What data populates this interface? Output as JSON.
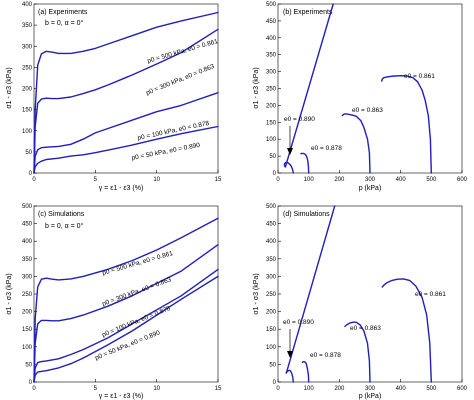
{
  "chart_data": [
    {
      "type": "line",
      "panel": "a",
      "title": "(a) Experiments",
      "subtitle": "b = 0, α = 0°",
      "xlabel": "γ = ε1 - ε3 (%)",
      "ylabel": "σ1 - σ3 (kPa)",
      "xlim": [
        0,
        15
      ],
      "ylim": [
        0,
        400
      ],
      "xticks": [
        0,
        5,
        10,
        15
      ],
      "yticks": [
        0,
        50,
        100,
        150,
        200,
        250,
        300,
        350,
        400
      ],
      "series": [
        {
          "name": "p0 = 500 kPa, e0 = 0.861",
          "x": [
            0,
            0.1,
            0.3,
            0.6,
            1,
            1.5,
            2,
            3,
            4,
            5,
            6,
            8,
            10,
            12,
            15
          ],
          "y": [
            0,
            150,
            255,
            282,
            288,
            286,
            283,
            283,
            288,
            295,
            305,
            325,
            345,
            360,
            380
          ]
        },
        {
          "name": "p0 = 300 kPa, e0 = 0.863",
          "x": [
            0,
            0.1,
            0.3,
            0.6,
            1,
            1.5,
            2,
            3,
            4,
            5,
            6,
            8,
            10,
            12,
            15
          ],
          "y": [
            0,
            110,
            165,
            175,
            177,
            176,
            176,
            180,
            188,
            197,
            208,
            232,
            258,
            285,
            340
          ]
        },
        {
          "name": "p0 = 100 kPa, e0 = 0.878",
          "x": [
            0,
            0.1,
            0.3,
            0.6,
            1,
            2,
            3,
            4,
            5,
            6,
            8,
            10,
            12,
            15
          ],
          "y": [
            0,
            40,
            55,
            60,
            61,
            63,
            68,
            80,
            95,
            105,
            125,
            145,
            160,
            190
          ]
        },
        {
          "name": "p0 = 50 kPa, e0 = 0.890",
          "x": [
            0,
            0.1,
            0.3,
            0.6,
            1,
            2,
            3,
            4,
            5,
            6,
            8,
            10,
            12,
            15
          ],
          "y": [
            0,
            15,
            23,
            28,
            32,
            35,
            40,
            43,
            48,
            54,
            66,
            80,
            93,
            110
          ]
        }
      ]
    },
    {
      "type": "line",
      "panel": "b",
      "title": "(b) Experiments",
      "xlabel": "p (kPa)",
      "ylabel": "σ1 - σ3 (kPa)",
      "xlim": [
        0,
        600
      ],
      "ylim": [
        0,
        500
      ],
      "xticks": [
        0,
        100,
        200,
        300,
        400,
        500,
        600
      ],
      "yticks": [
        0,
        50,
        100,
        150,
        200,
        250,
        300,
        350,
        400,
        450,
        500
      ],
      "annotations": [
        "e0 = 0.861",
        "e0 = 0.863",
        "e0 = 0.878",
        "e0 = 0.890"
      ],
      "series": [
        {
          "name": "e0 = 0.861",
          "x": [
            500,
            497,
            490,
            480,
            470,
            455,
            440,
            420,
            400,
            380,
            360,
            345,
            340,
            338
          ],
          "y": [
            0,
            100,
            170,
            215,
            245,
            270,
            282,
            287,
            288,
            287,
            285,
            282,
            278,
            272
          ]
        },
        {
          "name": "e0 = 0.863",
          "x": [
            300,
            298,
            292,
            280,
            270,
            255,
            240,
            228,
            220,
            215,
            212,
            210
          ],
          "y": [
            0,
            60,
            100,
            135,
            155,
            168,
            172,
            174,
            175,
            174,
            172,
            170
          ]
        },
        {
          "name": "e0 = 0.878",
          "x": [
            100,
            99,
            97,
            93,
            88,
            82,
            78,
            75
          ],
          "y": [
            0,
            20,
            38,
            50,
            56,
            58,
            58,
            57
          ]
        },
        {
          "name": "e0 = 0.890",
          "x": [
            50,
            47,
            42,
            36,
            30,
            25,
            22,
            21,
            22,
            24
          ],
          "y": [
            0,
            12,
            22,
            28,
            31,
            31,
            28,
            24,
            20,
            18
          ]
        },
        {
          "name": "critical state line",
          "x": [
            24,
            180
          ],
          "y": [
            18,
            500
          ]
        }
      ]
    },
    {
      "type": "line",
      "panel": "c",
      "title": "(c) Simulations",
      "subtitle": "b = 0, α = 0°",
      "xlabel": "γ = ε1 - ε3 (%)",
      "ylabel": "σ1 - σ3 (kPa)",
      "xlim": [
        0,
        15
      ],
      "ylim": [
        0,
        500
      ],
      "xticks": [
        0,
        5,
        10,
        15
      ],
      "yticks": [
        0,
        50,
        100,
        150,
        200,
        250,
        300,
        350,
        400,
        450,
        500
      ],
      "series": [
        {
          "name": "p0 = 500 kPa, e0 = 0.861",
          "x": [
            0,
            0.1,
            0.3,
            0.6,
            1,
            1.5,
            2,
            3,
            4,
            6,
            8,
            10,
            12,
            15
          ],
          "y": [
            0,
            180,
            270,
            292,
            295,
            292,
            290,
            293,
            300,
            320,
            345,
            375,
            410,
            465
          ]
        },
        {
          "name": "p0 = 300 kPa, e0 = 0.863",
          "x": [
            0,
            0.1,
            0.3,
            0.6,
            1,
            1.5,
            2,
            3,
            4,
            6,
            8,
            10,
            12,
            15
          ],
          "y": [
            0,
            110,
            165,
            175,
            175,
            174,
            174,
            180,
            190,
            215,
            245,
            280,
            315,
            390
          ]
        },
        {
          "name": "p0 = 100 kPa, e0 = 0.878",
          "x": [
            0,
            0.1,
            0.3,
            0.6,
            1,
            2,
            3,
            4,
            6,
            8,
            10,
            12,
            15
          ],
          "y": [
            0,
            40,
            55,
            58,
            60,
            66,
            78,
            92,
            125,
            165,
            205,
            245,
            320
          ]
        },
        {
          "name": "p0 = 50 kPa, e0 = 0.890",
          "x": [
            0,
            0.1,
            0.3,
            0.6,
            1,
            2,
            3,
            4,
            6,
            8,
            10,
            12,
            15
          ],
          "y": [
            0,
            20,
            28,
            30,
            32,
            40,
            52,
            68,
            105,
            145,
            190,
            235,
            300
          ]
        }
      ]
    },
    {
      "type": "line",
      "panel": "d",
      "title": "(d) Simulations",
      "xlabel": "p (kPa)",
      "ylabel": "σ1 - σ3 (kPa)",
      "xlim": [
        0,
        600
      ],
      "ylim": [
        0,
        500
      ],
      "xticks": [
        0,
        100,
        200,
        300,
        400,
        500,
        600
      ],
      "yticks": [
        0,
        50,
        100,
        150,
        200,
        250,
        300,
        350,
        400,
        450,
        500
      ],
      "annotations": [
        "e0 = 0.861",
        "e0 = 0.863",
        "e0 = 0.878",
        "e0 = 0.890"
      ],
      "series": [
        {
          "name": "e0 = 0.861",
          "x": [
            500,
            495,
            485,
            470,
            450,
            430,
            410,
            390,
            370,
            355,
            345,
            340
          ],
          "y": [
            0,
            110,
            190,
            240,
            272,
            288,
            293,
            292,
            288,
            282,
            275,
            270
          ]
        },
        {
          "name": "e0 = 0.863",
          "x": [
            300,
            298,
            292,
            280,
            268,
            255,
            245,
            235,
            225,
            218
          ],
          "y": [
            0,
            60,
            110,
            145,
            162,
            170,
            170,
            168,
            163,
            158
          ]
        },
        {
          "name": "e0 = 0.878",
          "x": [
            100,
            99,
            96,
            92,
            88,
            84,
            80
          ],
          "y": [
            0,
            20,
            38,
            52,
            57,
            58,
            56
          ]
        },
        {
          "name": "e0 = 0.890",
          "x": [
            50,
            48,
            44,
            40,
            35,
            30,
            27
          ],
          "y": [
            0,
            15,
            26,
            32,
            33,
            30,
            27
          ]
        },
        {
          "name": "critical state line",
          "x": [
            27,
            185
          ],
          "y": [
            25,
            500
          ]
        }
      ]
    }
  ],
  "labels": {
    "a": [
      "p0 = 500 kPa, e0 = 0.861",
      "p0 = 300 kPa, e0 = 0.863",
      "p0 = 100 kPa, e0 = 0.878",
      "p0 = 50 kPa, e0 = 0.890"
    ],
    "c": [
      "p0 = 500 kPa, e0 = 0.861",
      "p0 = 300 kPa, e0 = 0.863",
      "p0 = 100 kPa, e0 = 0.878",
      "p0 = 50 kPa, e0 = 0.890"
    ]
  }
}
